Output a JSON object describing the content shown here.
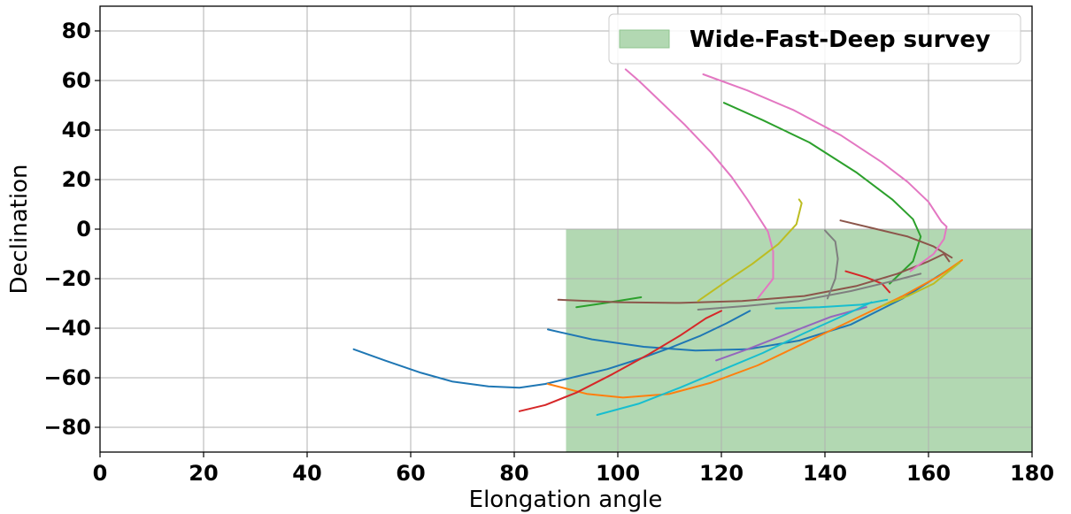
{
  "chart_data": {
    "type": "line",
    "xlabel": "Elongation angle",
    "ylabel": "Declination",
    "xlim": [
      0,
      180
    ],
    "ylim": [
      -90,
      90
    ],
    "xticks": [
      "0",
      "20",
      "40",
      "60",
      "80",
      "100",
      "120",
      "140",
      "160",
      "180"
    ],
    "yticks": [
      "−80",
      "−60",
      "−40",
      "−20",
      "0",
      "20",
      "40",
      "60",
      "80"
    ],
    "grid": true,
    "legend": {
      "position": "top-right",
      "entries": [
        "Wide-Fast-Deep survey"
      ]
    },
    "region": {
      "label": "Wide-Fast-Deep survey",
      "x": [
        90,
        180
      ],
      "y": [
        -90,
        0
      ],
      "color": "#b2d8b2"
    },
    "series": [
      {
        "color": "#1f77b4",
        "points": [
          [
            49,
            -48.5
          ],
          [
            55,
            -53
          ],
          [
            62,
            -58
          ],
          [
            68,
            -61.5
          ],
          [
            75,
            -63.5
          ],
          [
            81,
            -64
          ],
          [
            86,
            -62.5
          ],
          [
            92,
            -59.5
          ],
          [
            98,
            -56.5
          ],
          [
            104,
            -52.5
          ],
          [
            110,
            -48
          ],
          [
            116,
            -43
          ],
          [
            121,
            -38
          ],
          [
            125.5,
            -33
          ]
        ]
      },
      {
        "color": "#1f77b4",
        "points": [
          [
            86.5,
            -40.5
          ],
          [
            95,
            -44.5
          ],
          [
            105,
            -47.5
          ],
          [
            115,
            -49
          ],
          [
            125,
            -48.5
          ],
          [
            135,
            -45
          ],
          [
            145,
            -38.5
          ],
          [
            155,
            -28
          ],
          [
            166,
            -13.5
          ]
        ]
      },
      {
        "color": "#ff7f0e",
        "points": [
          [
            86.5,
            -62.5
          ],
          [
            94,
            -66.5
          ],
          [
            101,
            -68
          ],
          [
            110,
            -66.5
          ],
          [
            118,
            -62
          ],
          [
            127,
            -55
          ],
          [
            136,
            -46
          ],
          [
            145,
            -37
          ],
          [
            155,
            -27
          ],
          [
            162,
            -19
          ],
          [
            166.5,
            -12.5
          ]
        ]
      },
      {
        "color": "#2ca02c",
        "points": [
          [
            92,
            -31.5
          ],
          [
            97,
            -30
          ],
          [
            104.5,
            -27.5
          ]
        ]
      },
      {
        "color": "#2ca02c",
        "points": [
          [
            120.5,
            51
          ],
          [
            128,
            44
          ],
          [
            137,
            35
          ],
          [
            146,
            23
          ],
          [
            153,
            12
          ],
          [
            157,
            4
          ],
          [
            158.5,
            -3
          ],
          [
            157,
            -13
          ],
          [
            152.5,
            -22
          ]
        ]
      },
      {
        "color": "#d62728",
        "points": [
          [
            81,
            -73.5
          ],
          [
            86,
            -71
          ],
          [
            92,
            -66
          ],
          [
            99,
            -58.5
          ],
          [
            106,
            -50.5
          ],
          [
            112,
            -43
          ],
          [
            117,
            -36
          ],
          [
            120,
            -33
          ]
        ]
      },
      {
        "color": "#d62728",
        "points": [
          [
            144,
            -17
          ],
          [
            148,
            -19.5
          ],
          [
            151,
            -22
          ],
          [
            152.5,
            -25.5
          ]
        ]
      },
      {
        "color": "#9467bd",
        "points": [
          [
            119,
            -53
          ],
          [
            125,
            -48.5
          ],
          [
            133,
            -42
          ],
          [
            141,
            -35.5
          ],
          [
            148,
            -31.5
          ]
        ]
      },
      {
        "color": "#8c564b",
        "points": [
          [
            88.5,
            -28.5
          ],
          [
            100,
            -29.5
          ],
          [
            112,
            -29.8
          ],
          [
            124,
            -29
          ],
          [
            136,
            -27
          ],
          [
            146,
            -23
          ],
          [
            154,
            -18
          ],
          [
            160,
            -13
          ],
          [
            163,
            -10
          ],
          [
            164,
            -13
          ]
        ]
      },
      {
        "color": "#8c564b",
        "points": [
          [
            143,
            3.5
          ],
          [
            150,
            0
          ],
          [
            156,
            -3
          ],
          [
            161,
            -7
          ],
          [
            164.5,
            -11.5
          ]
        ]
      },
      {
        "color": "#e377c2",
        "points": [
          [
            101.5,
            64.5
          ],
          [
            104,
            60
          ],
          [
            108,
            52
          ],
          [
            113,
            42
          ],
          [
            118,
            31
          ],
          [
            122,
            21
          ],
          [
            125,
            12
          ],
          [
            129,
            -1
          ],
          [
            130,
            -9
          ],
          [
            130,
            -20
          ],
          [
            127,
            -28
          ]
        ]
      },
      {
        "color": "#e377c2",
        "points": [
          [
            116.5,
            62.5
          ],
          [
            125,
            56
          ],
          [
            134,
            48
          ],
          [
            143,
            38
          ],
          [
            151,
            27
          ],
          [
            156,
            19
          ],
          [
            160,
            11
          ],
          [
            162.5,
            3
          ],
          [
            163.5,
            1
          ],
          [
            163,
            -4
          ],
          [
            161,
            -10
          ],
          [
            156.5,
            -17
          ]
        ]
      },
      {
        "color": "#7f7f7f",
        "points": [
          [
            115.5,
            -32.5
          ],
          [
            125,
            -31
          ],
          [
            135,
            -29
          ],
          [
            145,
            -25
          ],
          [
            153,
            -21
          ],
          [
            158.5,
            -18
          ]
        ]
      },
      {
        "color": "#7f7f7f",
        "points": [
          [
            140,
            -0.5
          ],
          [
            142,
            -5
          ],
          [
            142.5,
            -12
          ],
          [
            142,
            -20
          ],
          [
            140.5,
            -28
          ]
        ]
      },
      {
        "color": "#bcbd22",
        "points": [
          [
            115.5,
            -29
          ],
          [
            121,
            -21
          ],
          [
            126,
            -14
          ],
          [
            131,
            -6
          ],
          [
            134.5,
            2
          ],
          [
            135.5,
            10.5
          ],
          [
            135,
            12
          ]
        ]
      },
      {
        "color": "#bcbd22",
        "points": [
          [
            151,
            -31
          ],
          [
            156,
            -27
          ],
          [
            161,
            -22
          ],
          [
            166,
            -13.5
          ]
        ]
      },
      {
        "color": "#17becf",
        "points": [
          [
            96,
            -75
          ],
          [
            104,
            -70.5
          ],
          [
            112,
            -64
          ],
          [
            120,
            -57
          ],
          [
            128,
            -50
          ],
          [
            136,
            -42
          ],
          [
            144,
            -34.5
          ],
          [
            149,
            -29.5
          ]
        ]
      },
      {
        "color": "#17becf",
        "points": [
          [
            130.5,
            -32
          ],
          [
            139,
            -31.5
          ],
          [
            147,
            -30.5
          ],
          [
            152,
            -28.5
          ]
        ]
      }
    ]
  }
}
